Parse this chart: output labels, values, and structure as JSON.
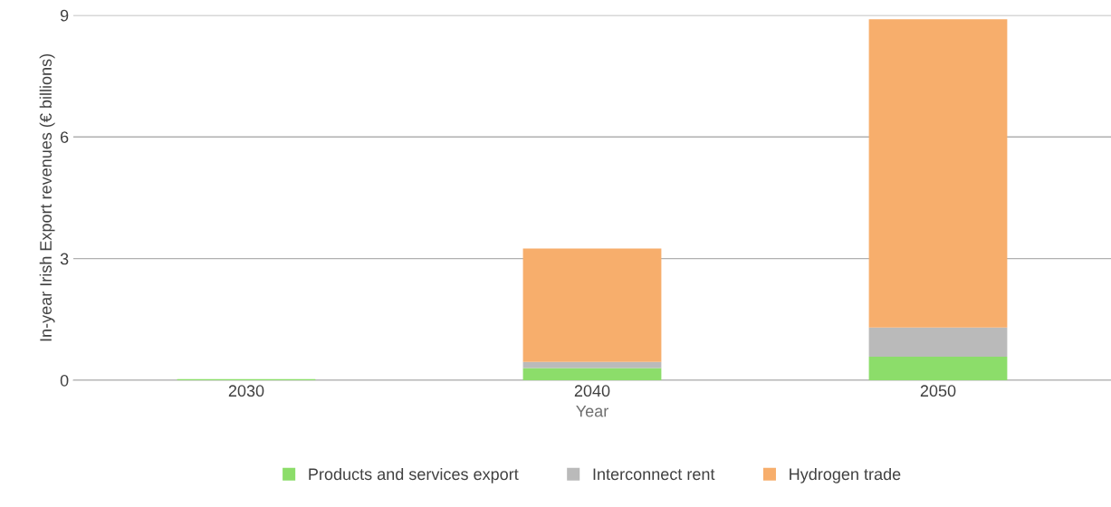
{
  "chart_data": {
    "type": "bar",
    "stacked": true,
    "xlabel": "Year",
    "ylabel": "In-year Irish Export revenues (€ billions)",
    "categories": [
      "2030",
      "2040",
      "2050"
    ],
    "series": [
      {
        "name": "Products and services export",
        "color": "#8cdd6a",
        "values": [
          0.03,
          0.3,
          0.58
        ]
      },
      {
        "name": "Interconnect rent",
        "color": "#bababa",
        "values": [
          0,
          0.15,
          0.72
        ]
      },
      {
        "name": "Hydrogen trade",
        "color": "#f7ae6c",
        "values": [
          0,
          2.8,
          7.6
        ]
      }
    ],
    "ylim": [
      0,
      9
    ],
    "yticks": [
      0,
      3,
      6,
      9
    ],
    "grid": "y",
    "legend": "bottom"
  }
}
